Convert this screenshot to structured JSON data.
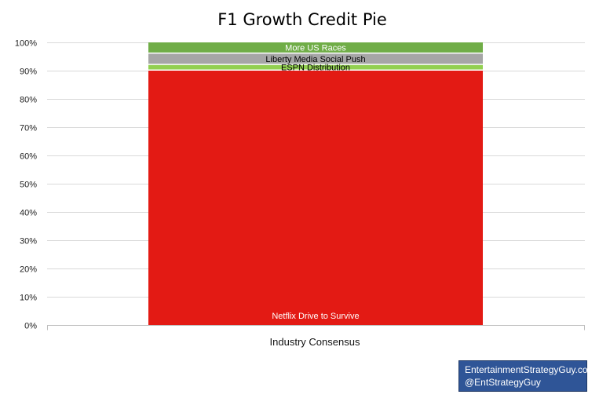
{
  "chart_data": {
    "type": "bar",
    "stacked": true,
    "title": "F1 Growth Credit Pie",
    "xlabel": "",
    "ylabel": "",
    "ylim": [
      0,
      1
    ],
    "yticks": [
      "0%",
      "10%",
      "20%",
      "30%",
      "40%",
      "50%",
      "60%",
      "70%",
      "80%",
      "90%",
      "100%"
    ],
    "categories": [
      "Industry Consensus"
    ],
    "grid": true,
    "series": [
      {
        "name": "Netflix Drive to Survive",
        "values": [
          0.9
        ],
        "color": "#e31a14",
        "label_color": "#ffffff"
      },
      {
        "name": "ESPN Distribution",
        "values": [
          0.02
        ],
        "color": "#92d050",
        "label_color": "#000000"
      },
      {
        "name": "Liberty Media Social Push",
        "values": [
          0.04
        ],
        "color": "#a6a6a6",
        "label_color": "#000000"
      },
      {
        "name": "More US Races",
        "values": [
          0.04
        ],
        "color": "#70ad47",
        "label_color": "#ffffff"
      }
    ]
  },
  "watermark": {
    "line1": "EntertainmentStrategyGuy.com",
    "line2": "@EntStrategyGuy"
  }
}
